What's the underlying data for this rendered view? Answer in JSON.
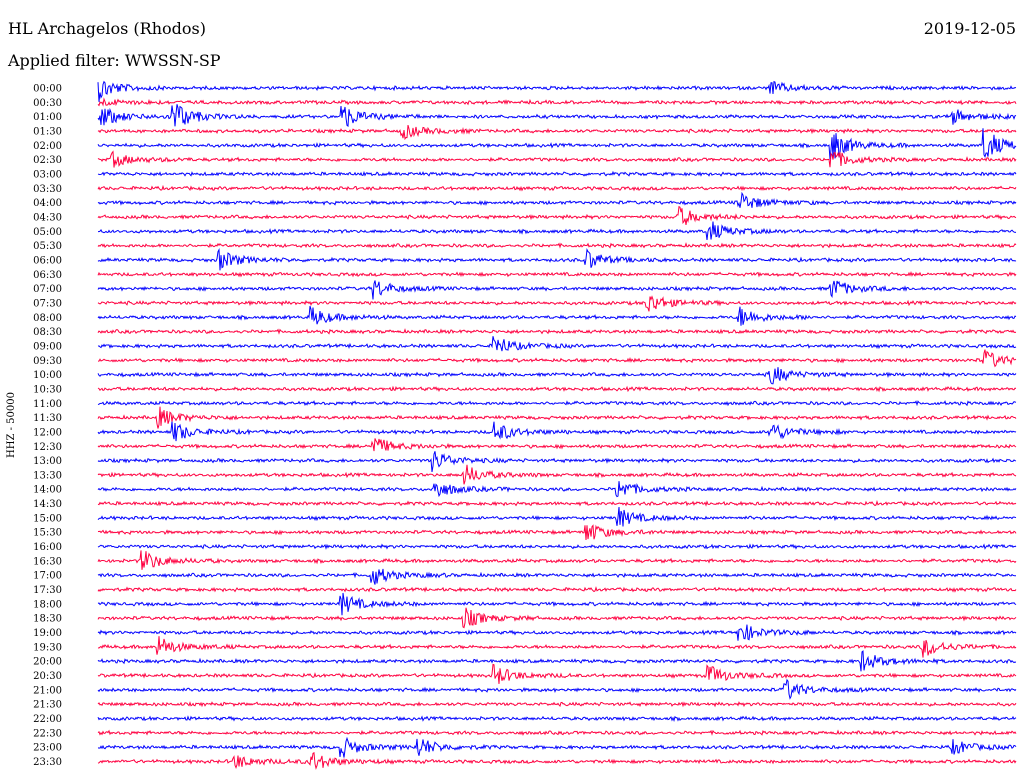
{
  "header": {
    "station": "HL Archagelos (Rhodos)",
    "date": "2019-12-05",
    "filter": "Applied filter: WWSSN-SP"
  },
  "colors": {
    "even_row": "#0000ff",
    "odd_row": "#ff0040"
  },
  "chart_data": {
    "type": "line",
    "title": "HL Archagelos (Rhodos)",
    "subtitle": "Applied filter: WWSSN-SP",
    "ylabel": "HHZ - 50000",
    "xlabel": "",
    "rows": [
      "00:00",
      "00:30",
      "01:00",
      "01:30",
      "02:00",
      "02:30",
      "03:00",
      "03:30",
      "04:00",
      "04:30",
      "05:00",
      "05:30",
      "06:00",
      "06:30",
      "07:00",
      "07:30",
      "08:00",
      "08:30",
      "09:00",
      "09:30",
      "10:00",
      "10:30",
      "11:00",
      "11:30",
      "12:00",
      "12:30",
      "13:00",
      "13:30",
      "14:00",
      "14:30",
      "15:00",
      "15:30",
      "16:00",
      "16:30",
      "17:00",
      "17:30",
      "18:00",
      "18:30",
      "19:00",
      "19:30",
      "20:00",
      "20:30",
      "21:00",
      "21:30",
      "22:00",
      "22:30",
      "23:00",
      "23:30"
    ],
    "row_minutes": 30,
    "events": [
      {
        "row": "00:00",
        "minute": 0.0,
        "amp": 4
      },
      {
        "row": "00:00",
        "minute": 22.0,
        "amp": 2
      },
      {
        "row": "00:00",
        "minute": 0.0,
        "amp": 1
      },
      {
        "row": "00:30",
        "minute": 0.0,
        "amp": 1
      },
      {
        "row": "01:00",
        "minute": 0.0,
        "amp": 4
      },
      {
        "row": "01:00",
        "minute": 2.5,
        "amp": 5
      },
      {
        "row": "01:00",
        "minute": 8.0,
        "amp": 4
      },
      {
        "row": "01:00",
        "minute": 28.0,
        "amp": 2
      },
      {
        "row": "01:30",
        "minute": 10.0,
        "amp": 2
      },
      {
        "row": "02:00",
        "minute": 24.0,
        "amp": 5
      },
      {
        "row": "02:00",
        "minute": 29.0,
        "amp": 5
      },
      {
        "row": "02:30",
        "minute": 0.5,
        "amp": 2
      },
      {
        "row": "02:30",
        "minute": 24.0,
        "amp": 3
      },
      {
        "row": "04:00",
        "minute": 21.0,
        "amp": 3
      },
      {
        "row": "04:30",
        "minute": 19.0,
        "amp": 3
      },
      {
        "row": "05:00",
        "minute": 20.0,
        "amp": 3
      },
      {
        "row": "06:00",
        "minute": 4.0,
        "amp": 3
      },
      {
        "row": "06:00",
        "minute": 16.0,
        "amp": 3
      },
      {
        "row": "07:00",
        "minute": 9.0,
        "amp": 3
      },
      {
        "row": "07:00",
        "minute": 24.0,
        "amp": 3
      },
      {
        "row": "07:30",
        "minute": 18.0,
        "amp": 3
      },
      {
        "row": "08:00",
        "minute": 7.0,
        "amp": 3
      },
      {
        "row": "08:00",
        "minute": 21.0,
        "amp": 3
      },
      {
        "row": "09:00",
        "minute": 13.0,
        "amp": 3
      },
      {
        "row": "09:30",
        "minute": 29.0,
        "amp": 3
      },
      {
        "row": "10:00",
        "minute": 22.0,
        "amp": 3
      },
      {
        "row": "11:30",
        "minute": 2.0,
        "amp": 3
      },
      {
        "row": "12:00",
        "minute": 2.5,
        "amp": 3
      },
      {
        "row": "12:00",
        "minute": 13.0,
        "amp": 3
      },
      {
        "row": "12:00",
        "minute": 22.0,
        "amp": 3
      },
      {
        "row": "12:30",
        "minute": 9.0,
        "amp": 3
      },
      {
        "row": "13:00",
        "minute": 11.0,
        "amp": 3
      },
      {
        "row": "13:30",
        "minute": 12.0,
        "amp": 3
      },
      {
        "row": "14:00",
        "minute": 11.0,
        "amp": 3
      },
      {
        "row": "14:00",
        "minute": 17.0,
        "amp": 3
      },
      {
        "row": "15:00",
        "minute": 17.0,
        "amp": 3
      },
      {
        "row": "15:30",
        "minute": 16.0,
        "amp": 3
      },
      {
        "row": "16:30",
        "minute": 1.5,
        "amp": 3
      },
      {
        "row": "17:00",
        "minute": 9.0,
        "amp": 3
      },
      {
        "row": "18:00",
        "minute": 8.0,
        "amp": 3
      },
      {
        "row": "18:30",
        "minute": 12.0,
        "amp": 3
      },
      {
        "row": "19:00",
        "minute": 21.0,
        "amp": 3
      },
      {
        "row": "19:30",
        "minute": 2.0,
        "amp": 3
      },
      {
        "row": "19:30",
        "minute": 27.0,
        "amp": 3
      },
      {
        "row": "20:00",
        "minute": 25.0,
        "amp": 3
      },
      {
        "row": "20:30",
        "minute": 13.0,
        "amp": 3
      },
      {
        "row": "20:30",
        "minute": 20.0,
        "amp": 3
      },
      {
        "row": "21:00",
        "minute": 22.5,
        "amp": 3
      },
      {
        "row": "23:00",
        "minute": 8.0,
        "amp": 3
      },
      {
        "row": "23:00",
        "minute": 10.5,
        "amp": 3
      },
      {
        "row": "23:00",
        "minute": 28.0,
        "amp": 2
      },
      {
        "row": "23:30",
        "minute": 4.5,
        "amp": 2
      },
      {
        "row": "23:30",
        "minute": 7.0,
        "amp": 3
      }
    ]
  }
}
